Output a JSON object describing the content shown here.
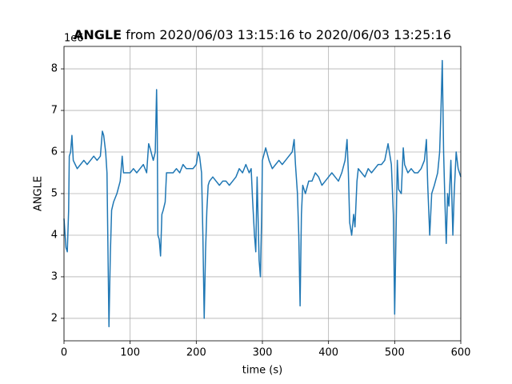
{
  "chart_data": {
    "type": "line",
    "title_bold": "ANGLE",
    "title": "from 2020/06/03 13:15:16 to 2020/06/03 13:25:16",
    "offset_label": "1e6",
    "x_label": "time (s)",
    "y_label": "ANGLE",
    "grid": true,
    "xlim": [
      0,
      600
    ],
    "xticks": [
      0,
      100,
      200,
      300,
      400,
      500,
      600
    ],
    "ylim": [
      1.46,
      8.54
    ],
    "yticks": [
      2,
      3,
      4,
      5,
      6,
      7,
      8
    ],
    "x": [
      0,
      3,
      5,
      7,
      8,
      10,
      12,
      14,
      17,
      20,
      25,
      30,
      35,
      40,
      45,
      50,
      55,
      58,
      60,
      63,
      65,
      67,
      68,
      70,
      72,
      75,
      80,
      85,
      88,
      90,
      95,
      100,
      105,
      110,
      115,
      120,
      125,
      128,
      130,
      135,
      138,
      140,
      141,
      142,
      144,
      146,
      148,
      150,
      153,
      155,
      160,
      165,
      170,
      175,
      180,
      185,
      190,
      195,
      200,
      203,
      205,
      208,
      210,
      212,
      214,
      216,
      218,
      220,
      225,
      230,
      235,
      240,
      245,
      250,
      255,
      260,
      265,
      270,
      275,
      280,
      283,
      285,
      288,
      290,
      292,
      295,
      297,
      299,
      300,
      305,
      310,
      315,
      320,
      325,
      330,
      335,
      340,
      345,
      348,
      350,
      353,
      355,
      357,
      359,
      361,
      365,
      370,
      375,
      380,
      385,
      390,
      395,
      400,
      405,
      410,
      415,
      420,
      425,
      428,
      430,
      432,
      435,
      438,
      440,
      443,
      445,
      450,
      455,
      460,
      465,
      470,
      475,
      480,
      485,
      490,
      495,
      498,
      500,
      502,
      504,
      506,
      510,
      513,
      515,
      520,
      525,
      530,
      535,
      540,
      545,
      548,
      550,
      553,
      556,
      560,
      565,
      568,
      570,
      572,
      574,
      576,
      578,
      580,
      582,
      585,
      588,
      590,
      593,
      596,
      600
    ],
    "series": [
      {
        "name": "ANGLE",
        "color": "#1f77b4",
        "values": [
          4.4,
          3.7,
          3.6,
          4.6,
          5.9,
          6.0,
          6.4,
          5.8,
          5.7,
          5.6,
          5.7,
          5.8,
          5.7,
          5.8,
          5.9,
          5.8,
          5.9,
          6.5,
          6.4,
          6.0,
          5.5,
          3.0,
          1.8,
          3.5,
          4.6,
          4.8,
          5.0,
          5.3,
          5.9,
          5.5,
          5.5,
          5.5,
          5.6,
          5.5,
          5.6,
          5.7,
          5.5,
          6.2,
          6.1,
          5.8,
          6.0,
          7.5,
          6.5,
          4.0,
          3.9,
          3.5,
          4.5,
          4.6,
          4.8,
          5.5,
          5.5,
          5.5,
          5.6,
          5.5,
          5.7,
          5.6,
          5.6,
          5.6,
          5.7,
          6.0,
          5.9,
          5.5,
          4.0,
          2.0,
          3.6,
          4.6,
          5.2,
          5.3,
          5.4,
          5.3,
          5.2,
          5.3,
          5.3,
          5.2,
          5.3,
          5.4,
          5.6,
          5.5,
          5.7,
          5.5,
          5.6,
          4.9,
          4.0,
          3.6,
          5.4,
          3.4,
          3.0,
          4.6,
          5.8,
          6.1,
          5.8,
          5.6,
          5.7,
          5.8,
          5.7,
          5.8,
          5.9,
          6.0,
          6.3,
          5.7,
          5.0,
          4.0,
          2.3,
          4.5,
          5.2,
          5.0,
          5.3,
          5.3,
          5.5,
          5.4,
          5.2,
          5.3,
          5.4,
          5.5,
          5.4,
          5.3,
          5.5,
          5.8,
          6.3,
          5.5,
          4.3,
          4.0,
          4.5,
          4.2,
          5.3,
          5.6,
          5.5,
          5.4,
          5.6,
          5.5,
          5.6,
          5.7,
          5.7,
          5.8,
          6.2,
          5.7,
          4.5,
          2.1,
          4.0,
          5.8,
          5.1,
          5.0,
          6.1,
          5.7,
          5.5,
          5.6,
          5.5,
          5.5,
          5.6,
          5.8,
          6.3,
          5.2,
          4.0,
          5.0,
          5.2,
          5.5,
          6.0,
          7.0,
          8.2,
          6.0,
          4.8,
          3.8,
          5.0,
          4.7,
          5.8,
          4.0,
          5.0,
          6.0,
          5.6,
          5.4
        ]
      }
    ]
  }
}
